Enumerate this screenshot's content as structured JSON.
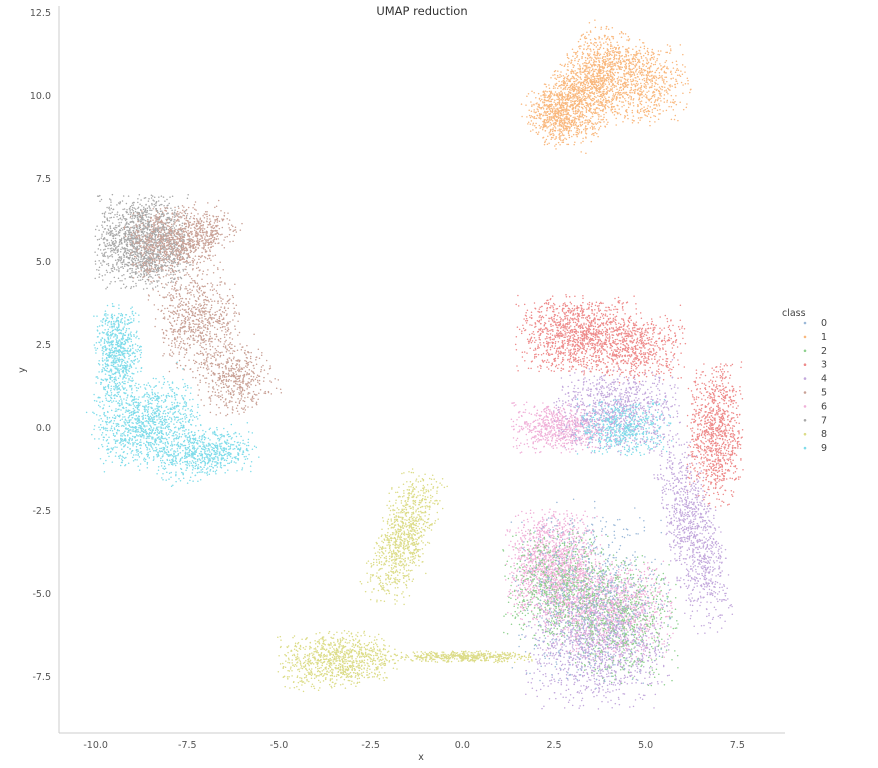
{
  "chart_data": {
    "type": "scatter",
    "title": "UMAP reduction",
    "xlabel": "x",
    "ylabel": "y",
    "xlim": [
      -11.0,
      8.8
    ],
    "ylim": [
      -9.2,
      12.7
    ],
    "xticks": [
      "-10.0",
      "-7.5",
      "-5.0",
      "-2.5",
      "0.0",
      "2.5",
      "5.0",
      "7.5"
    ],
    "xtick_values": [
      -10.0,
      -7.5,
      -5.0,
      -2.5,
      0.0,
      2.5,
      5.0,
      7.5
    ],
    "yticks": [
      "12.5",
      "10.0",
      "7.5",
      "5.0",
      "2.5",
      "0.0",
      "-2.5",
      "-5.0",
      "-7.5"
    ],
    "ytick_values": [
      12.5,
      10.0,
      7.5,
      5.0,
      2.5,
      0.0,
      -2.5,
      -5.0,
      -7.5
    ],
    "grid": false,
    "legend": {
      "title": "class",
      "placement": "right",
      "entries": [
        "0",
        "1",
        "2",
        "3",
        "4",
        "5",
        "6",
        "7",
        "8",
        "9"
      ]
    },
    "colors": [
      "#9ab8d8",
      "#f9b87e",
      "#8ed08e",
      "#ee8a8a",
      "#c3a8dc",
      "#c9a196",
      "#f0b0d8",
      "#a8a8a8",
      "#dcdc88",
      "#7fdcea"
    ],
    "clusters": [
      {
        "class": "1",
        "n": 2600,
        "parts": [
          {
            "cx": 3.5,
            "cy": 10.3,
            "sx": 0.85,
            "sy": 0.5,
            "r": 1.0,
            "w": 0.55
          },
          {
            "cx": 4.9,
            "cy": 10.4,
            "sx": 0.6,
            "sy": 0.6,
            "r": 0.1,
            "w": 0.25
          },
          {
            "cx": 2.6,
            "cy": 9.4,
            "sx": 0.4,
            "sy": 0.45,
            "r": 0.3,
            "w": 0.2
          }
        ]
      },
      {
        "class": "7",
        "n": 1600,
        "parts": [
          {
            "cx": -8.7,
            "cy": 5.6,
            "sx": 0.6,
            "sy": 0.65,
            "r": 0.0,
            "w": 1.0
          }
        ]
      },
      {
        "class": "5",
        "n": 2200,
        "parts": [
          {
            "cx": -7.9,
            "cy": 5.6,
            "sx": 0.6,
            "sy": 0.5,
            "r": 0.2,
            "w": 0.35
          },
          {
            "cx": -7.2,
            "cy": 3.2,
            "sx": 0.55,
            "sy": 0.75,
            "r": 0.2,
            "w": 0.35
          },
          {
            "cx": -6.2,
            "cy": 1.4,
            "sx": 0.5,
            "sy": 0.45,
            "r": 0.5,
            "w": 0.2
          },
          {
            "cx": -6.9,
            "cy": 5.9,
            "sx": 0.4,
            "sy": 0.3,
            "r": 0.6,
            "w": 0.1
          }
        ]
      },
      {
        "class": "9",
        "n": 2500,
        "parts": [
          {
            "cx": -9.4,
            "cy": 2.2,
            "sx": 0.3,
            "sy": 0.7,
            "r": 0.0,
            "w": 0.3
          },
          {
            "cx": -8.6,
            "cy": 0.1,
            "sx": 0.7,
            "sy": 0.6,
            "r": 0.3,
            "w": 0.45
          },
          {
            "cx": -7.0,
            "cy": -0.8,
            "sx": 0.65,
            "sy": 0.35,
            "r": 0.2,
            "w": 0.25
          }
        ]
      },
      {
        "class": "8",
        "n": 2300,
        "parts": [
          {
            "cx": -3.4,
            "cy": -7.0,
            "sx": 0.75,
            "sy": 0.4,
            "r": 0.1,
            "w": 0.4
          },
          {
            "cx": -1.6,
            "cy": -3.3,
            "sx": 0.35,
            "sy": 0.95,
            "r": -0.3,
            "w": 0.4
          },
          {
            "cx": 0.0,
            "cy": -6.9,
            "sx": 0.9,
            "sy": 0.08,
            "r": 0.0,
            "w": 0.2
          }
        ]
      },
      {
        "class": "3",
        "n": 2700,
        "parts": [
          {
            "cx": 3.2,
            "cy": 2.8,
            "sx": 0.8,
            "sy": 0.55,
            "r": 0.0,
            "w": 0.45
          },
          {
            "cx": 4.8,
            "cy": 2.4,
            "sx": 0.6,
            "sy": 0.5,
            "r": 0.0,
            "w": 0.2
          },
          {
            "cx": 6.9,
            "cy": -0.2,
            "sx": 0.35,
            "sy": 1.0,
            "r": 0.0,
            "w": 0.35
          }
        ]
      },
      {
        "class": "6",
        "n": 3300,
        "parts": [
          {
            "cx": 2.6,
            "cy": 0.0,
            "sx": 0.6,
            "sy": 0.35,
            "r": 0.0,
            "w": 0.2
          },
          {
            "cx": 2.5,
            "cy": -4.2,
            "sx": 0.6,
            "sy": 0.8,
            "r": 0.0,
            "w": 0.45
          },
          {
            "cx": 4.0,
            "cy": -5.5,
            "sx": 0.8,
            "sy": 0.7,
            "r": 0.0,
            "w": 0.35
          }
        ]
      },
      {
        "class": "4",
        "n": 3200,
        "parts": [
          {
            "cx": 4.2,
            "cy": 0.5,
            "sx": 0.8,
            "sy": 0.6,
            "r": 0.0,
            "w": 0.3
          },
          {
            "cx": 3.7,
            "cy": -6.5,
            "sx": 0.9,
            "sy": 0.9,
            "r": 0.0,
            "w": 0.4
          },
          {
            "cx": 6.3,
            "cy": -3.2,
            "sx": 0.35,
            "sy": 1.4,
            "r": 0.2,
            "w": 0.3
          }
        ]
      },
      {
        "class": "2",
        "n": 1300,
        "parts": [
          {
            "cx": 2.6,
            "cy": -4.8,
            "sx": 0.7,
            "sy": 0.8,
            "r": 0.0,
            "w": 0.55
          },
          {
            "cx": 4.4,
            "cy": -5.8,
            "sx": 0.7,
            "sy": 0.9,
            "r": 0.0,
            "w": 0.45
          }
        ]
      },
      {
        "class": "9",
        "n": 500,
        "parts": [
          {
            "cx": 4.4,
            "cy": 0.0,
            "sx": 0.6,
            "sy": 0.4,
            "r": 0.0,
            "w": 1.0
          }
        ]
      },
      {
        "class": "0",
        "n": 700,
        "parts": [
          {
            "cx": 3.5,
            "cy": -5.0,
            "sx": 1.0,
            "sy": 1.3,
            "r": 0.0,
            "w": 1.0
          }
        ]
      }
    ]
  }
}
